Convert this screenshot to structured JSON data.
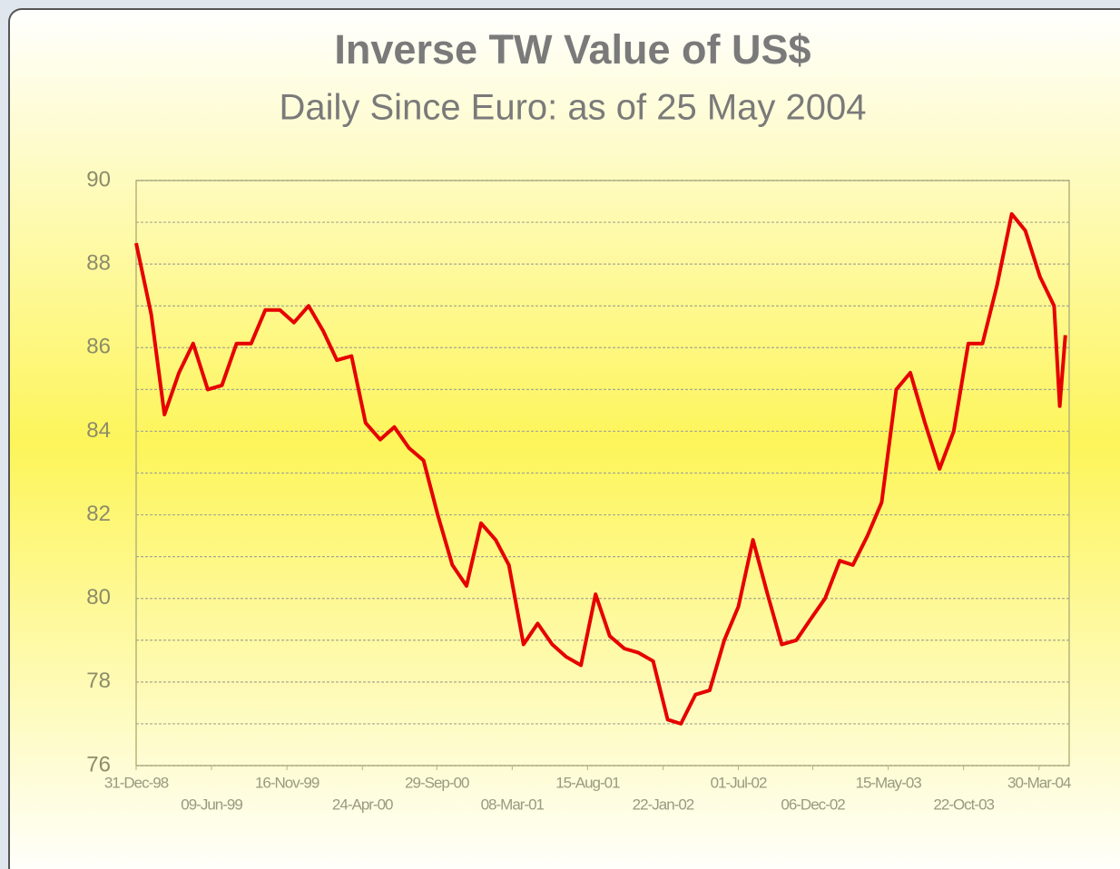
{
  "chart_data": {
    "type": "line",
    "title": "Inverse TW Value of US$",
    "subtitle": "Daily Since Euro: as of 25 May 2004",
    "x": [
      "31-Dec-98",
      "01-Feb-99",
      "01-Mar-99",
      "01-Apr-99",
      "01-May-99",
      "01-Jun-99",
      "01-Jul-99",
      "01-Aug-99",
      "01-Sep-99",
      "01-Oct-99",
      "01-Nov-99",
      "01-Dec-99",
      "01-Jan-00",
      "01-Feb-00",
      "01-Mar-00",
      "01-Apr-00",
      "01-May-00",
      "01-Jun-00",
      "01-Jul-00",
      "01-Aug-00",
      "01-Sep-00",
      "01-Oct-00",
      "01-Nov-00",
      "01-Dec-00",
      "01-Jan-01",
      "01-Feb-01",
      "01-Mar-01",
      "01-Apr-01",
      "01-May-01",
      "01-Jun-01",
      "01-Jul-01",
      "01-Aug-01",
      "01-Sep-01",
      "01-Oct-01",
      "01-Nov-01",
      "01-Dec-01",
      "01-Jan-02",
      "01-Feb-02",
      "01-Mar-02",
      "01-Apr-02",
      "01-May-02",
      "01-Jun-02",
      "01-Jul-02",
      "01-Aug-02",
      "01-Sep-02",
      "01-Oct-02",
      "01-Nov-02",
      "01-Dec-02",
      "01-Jan-03",
      "01-Feb-03",
      "01-Mar-03",
      "01-Apr-03",
      "01-May-03",
      "01-Jun-03",
      "01-Jul-03",
      "01-Aug-03",
      "01-Sep-03",
      "01-Oct-03",
      "01-Nov-03",
      "01-Dec-03",
      "01-Jan-04",
      "01-Feb-04",
      "01-Mar-04",
      "01-Apr-04",
      "01-May-04",
      "13-May-04",
      "25-May-04"
    ],
    "series": [
      {
        "name": "Inverse TW Value of US$",
        "color": "#e60000",
        "values": [
          88.5,
          86.8,
          84.4,
          85.4,
          86.1,
          85.0,
          85.1,
          86.1,
          86.1,
          86.9,
          86.9,
          86.6,
          87.0,
          86.4,
          85.7,
          85.8,
          84.2,
          83.8,
          84.1,
          83.6,
          83.3,
          82.0,
          80.8,
          80.3,
          81.8,
          81.4,
          80.8,
          78.9,
          79.4,
          78.9,
          78.6,
          78.4,
          80.1,
          79.1,
          78.8,
          78.7,
          78.5,
          77.1,
          77.0,
          77.7,
          77.8,
          79.0,
          79.8,
          81.4,
          80.1,
          78.9,
          79.0,
          79.5,
          80.0,
          80.9,
          80.8,
          81.5,
          82.3,
          85.0,
          85.4,
          84.2,
          83.1,
          84.0,
          86.1,
          86.1,
          87.5,
          89.2,
          88.8,
          87.7,
          87.0,
          84.6,
          86.3
        ]
      }
    ],
    "xlim": [
      "31-Dec-98",
      "02-Jun-04"
    ],
    "xticks": [
      "31-Dec-98",
      "09-Jun-99",
      "16-Nov-99",
      "24-Apr-00",
      "29-Sep-00",
      "08-Mar-01",
      "15-Aug-01",
      "22-Jan-02",
      "01-Jul-02",
      "06-Dec-02",
      "15-May-03",
      "22-Oct-03",
      "30-Mar-04"
    ],
    "ylim": [
      76,
      90
    ],
    "yticks": [
      76,
      78,
      80,
      82,
      84,
      86,
      88,
      90
    ],
    "y_minor_ticks": [
      77,
      79,
      81,
      83,
      85,
      87,
      89
    ],
    "grid": true
  }
}
